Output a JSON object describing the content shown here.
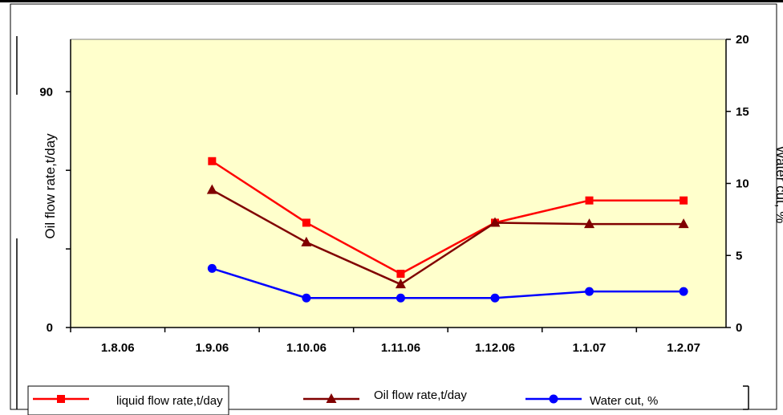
{
  "chart_data": {
    "type": "line",
    "title": "",
    "categories": [
      "1.8.06",
      "1.9.06",
      "1.10.06",
      "1.11.06",
      "1.12.06",
      "1.1.07",
      "1.2.07"
    ],
    "y_left": {
      "label": "Oil flow rate,t/day",
      "range": [
        0,
        110
      ],
      "ticks": [
        0,
        90
      ],
      "unlabeled_ticks": [
        30,
        60
      ]
    },
    "y_right": {
      "label": "Water cut, %",
      "range": [
        0,
        20
      ],
      "ticks": [
        0,
        5,
        10,
        15,
        20
      ]
    },
    "series": [
      {
        "name": "liquid flow rate,t/day",
        "axis": "left",
        "color": "#ff0000",
        "marker": "square",
        "values": [
          null,
          63.5,
          40,
          20.5,
          40,
          48.5,
          48.5
        ]
      },
      {
        "name": "Oil flow rate,t/day",
        "axis": "left",
        "color": "#800000",
        "marker": "triangle",
        "values": [
          null,
          52.5,
          32.5,
          16.5,
          40,
          39.5,
          39.5
        ]
      },
      {
        "name": "Water cut, %",
        "axis": "right",
        "color": "#0000ff",
        "marker": "circle",
        "values": [
          null,
          4.1,
          2.05,
          2.05,
          2.05,
          2.5,
          2.5
        ]
      }
    ],
    "grid": false,
    "legend_position": "bottom",
    "plot_background": "#ffffcc"
  }
}
